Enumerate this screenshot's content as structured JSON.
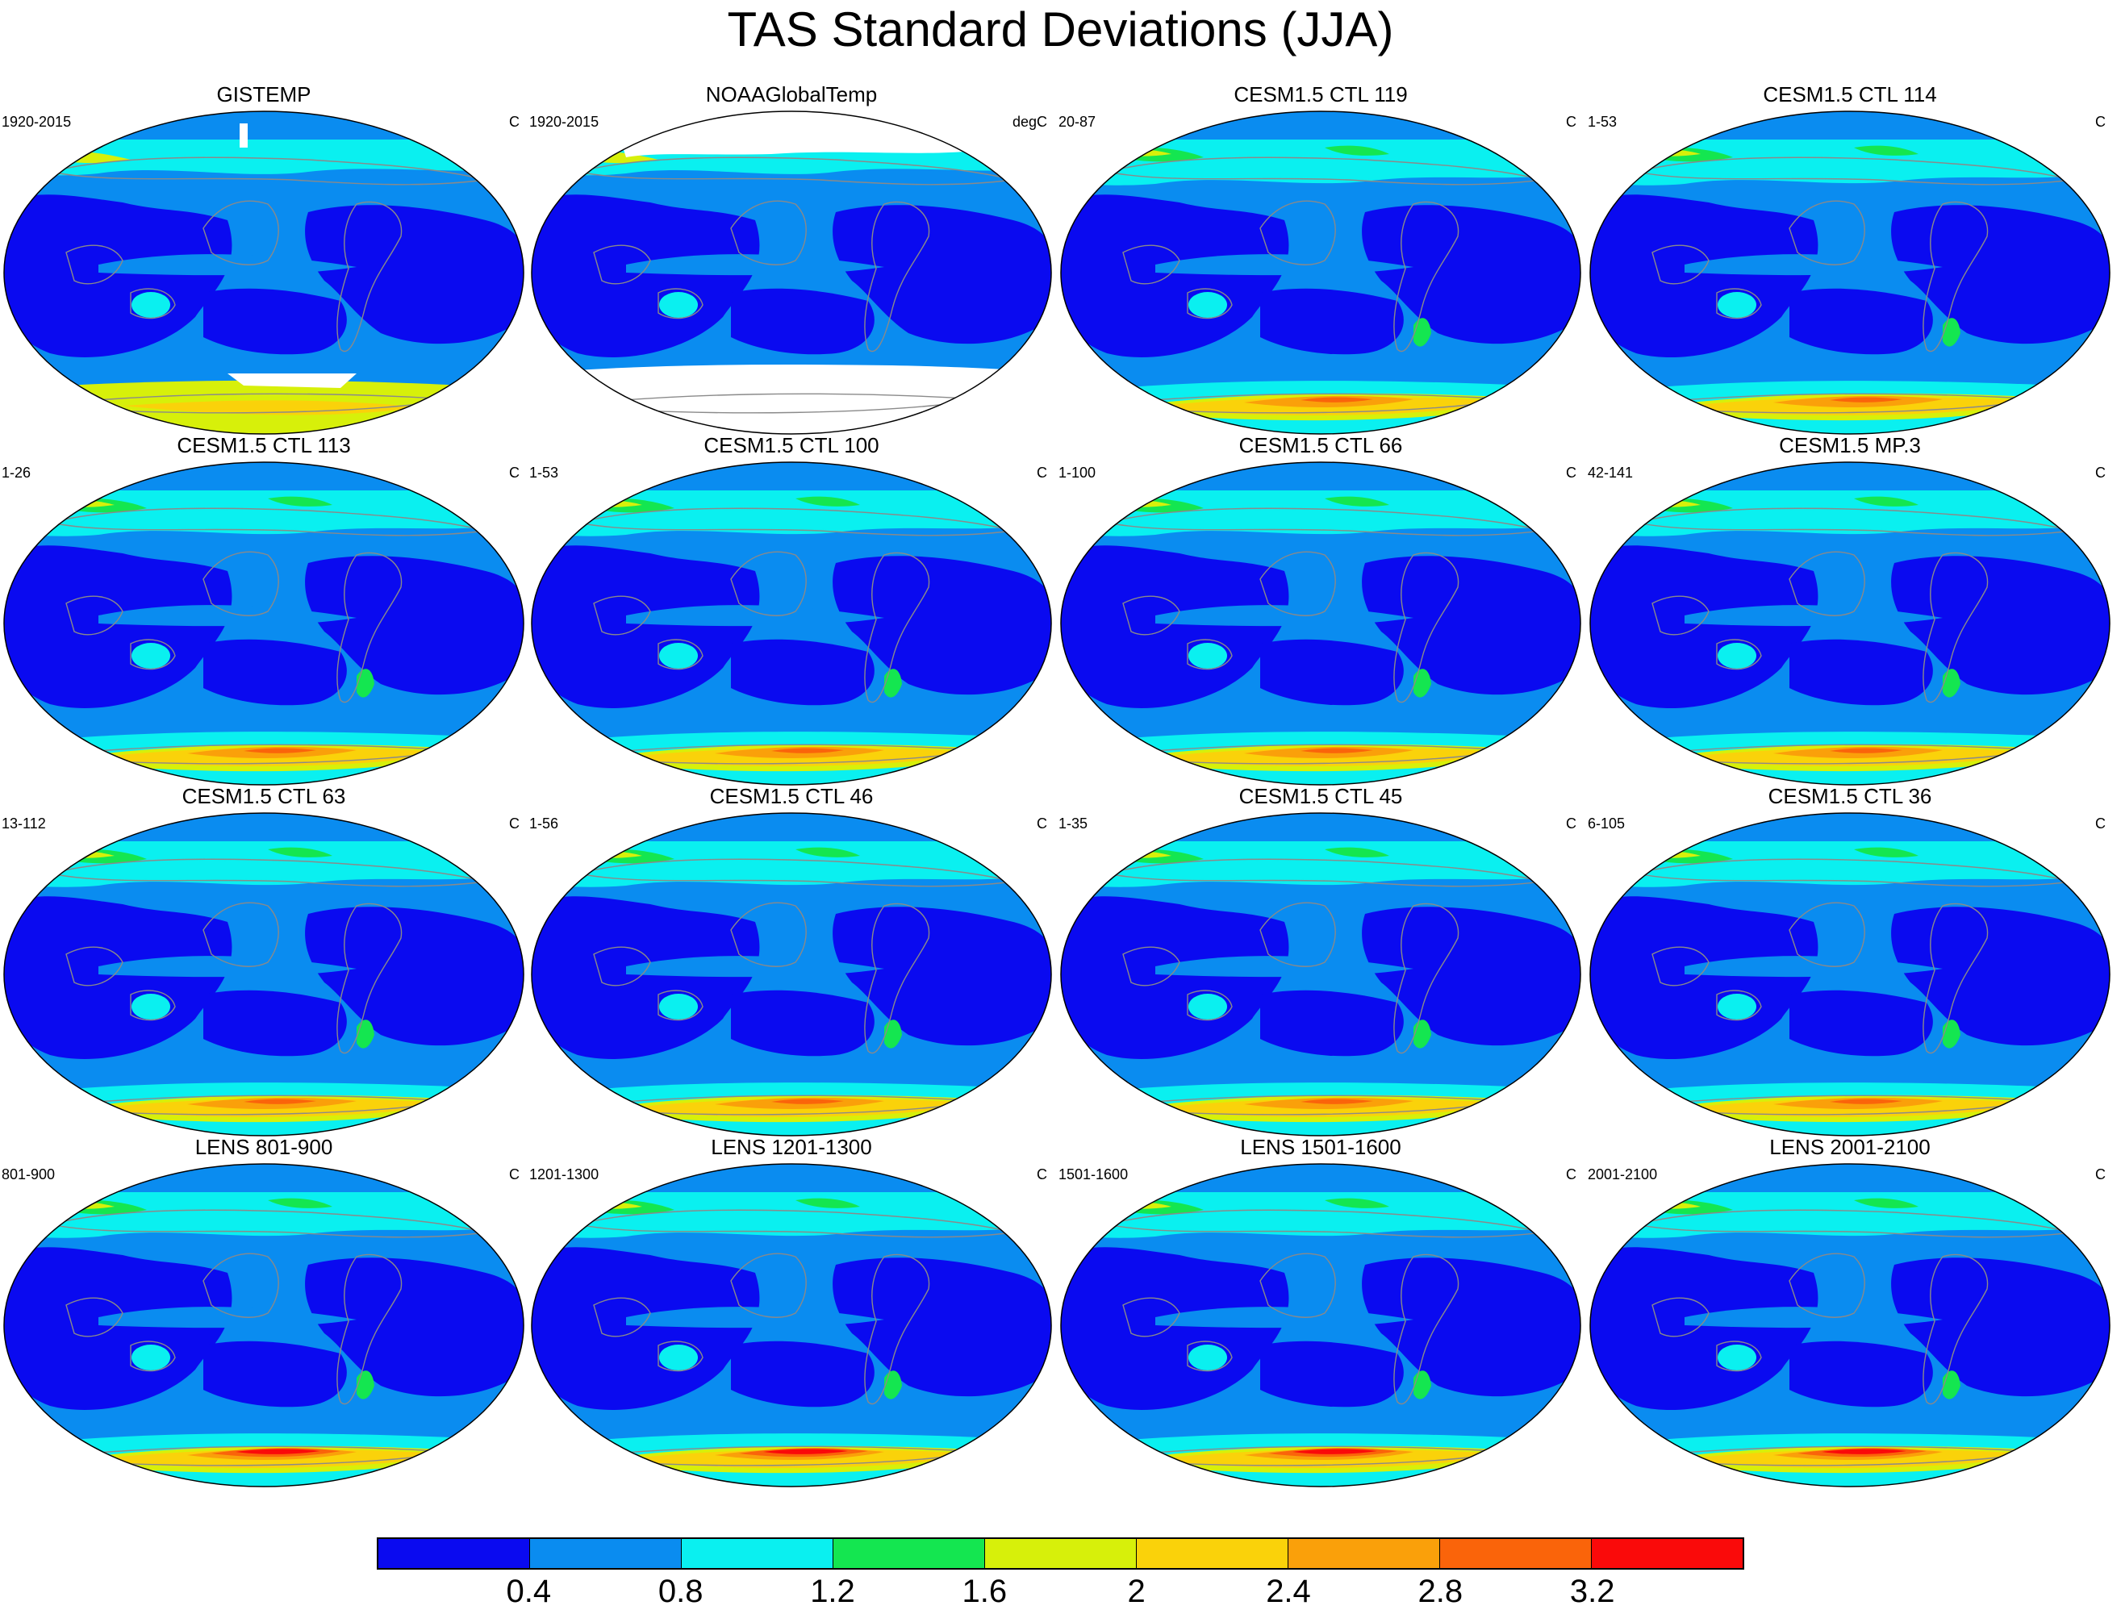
{
  "title": "TAS Standard Deviations (JJA)",
  "panels": [
    {
      "title": "GISTEMP",
      "period": "1920-2015",
      "units": "C",
      "type": "obs1"
    },
    {
      "title": "NOAAGlobalTemp",
      "period": "1920-2015",
      "units": "degC",
      "type": "obs2"
    },
    {
      "title": "CESM1.5 CTL 119",
      "period": "20-87",
      "units": "C",
      "type": "model"
    },
    {
      "title": "CESM1.5 CTL 114",
      "period": "1-53",
      "units": "C",
      "type": "model"
    },
    {
      "title": "CESM1.5 CTL 113",
      "period": "1-26",
      "units": "C",
      "type": "model"
    },
    {
      "title": "CESM1.5 CTL 100",
      "period": "1-53",
      "units": "C",
      "type": "model"
    },
    {
      "title": "CESM1.5 CTL 66",
      "period": "1-100",
      "units": "C",
      "type": "model"
    },
    {
      "title": "CESM1.5 MP.3",
      "period": "42-141",
      "units": "C",
      "type": "model"
    },
    {
      "title": "CESM1.5 CTL 63",
      "period": "13-112",
      "units": "C",
      "type": "model"
    },
    {
      "title": "CESM1.5 CTL 46",
      "period": "1-56",
      "units": "C",
      "type": "model"
    },
    {
      "title": "CESM1.5 CTL 45",
      "period": "1-35",
      "units": "C",
      "type": "model"
    },
    {
      "title": "CESM1.5 CTL 36",
      "period": "6-105",
      "units": "C",
      "type": "model"
    },
    {
      "title": "LENS 801-900",
      "period": "801-900",
      "units": "C",
      "type": "lens"
    },
    {
      "title": "LENS 1201-1300",
      "period": "1201-1300",
      "units": "C",
      "type": "lens"
    },
    {
      "title": "LENS 1501-1600",
      "period": "1501-1600",
      "units": "C",
      "type": "lens"
    },
    {
      "title": "LENS 2001-2100",
      "period": "2001-2100",
      "units": "C",
      "type": "lens"
    }
  ],
  "colorbar": {
    "labels": [
      "0.4",
      "0.8",
      "1.2",
      "1.6",
      "2",
      "2.4",
      "2.8",
      "3.2"
    ],
    "colors": [
      "#0a0af0",
      "#0a8cf0",
      "#0af0f0",
      "#14e650",
      "#d7f00a",
      "#fad20a",
      "#faa00a",
      "#fa640a",
      "#fa0a0a"
    ]
  }
}
